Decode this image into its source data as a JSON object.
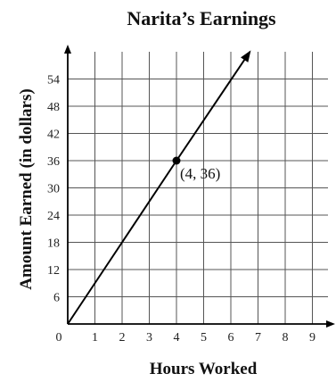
{
  "chart_data": {
    "type": "line",
    "title": "Narita’s Earnings",
    "xlabel": "Hours Worked",
    "ylabel": "Amount Earned (in dollars)",
    "xlim": [
      0,
      10
    ],
    "ylim": [
      0,
      60
    ],
    "x_ticks": [
      0,
      1,
      2,
      3,
      4,
      5,
      6,
      7,
      8,
      9
    ],
    "y_ticks": [
      6,
      12,
      18,
      24,
      30,
      36,
      42,
      48,
      54
    ],
    "grid": true,
    "series": [
      {
        "x": [
          0,
          4,
          6.7
        ],
        "y": [
          0,
          36,
          60
        ]
      }
    ],
    "highlighted_point": {
      "x": 4,
      "y": 36,
      "label": "(4, 36)"
    }
  }
}
